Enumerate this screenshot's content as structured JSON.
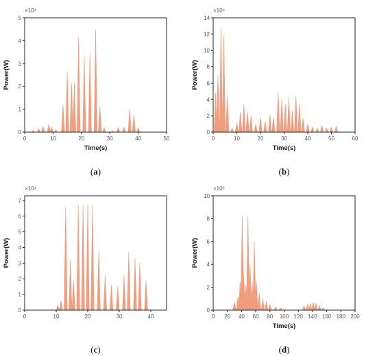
{
  "accent_color": "#EF9A7A",
  "chart_data": [
    {
      "id": "a",
      "type": "area",
      "panel_label": "a",
      "title": "",
      "xlabel": "Time(s)",
      "ylabel": "Power(W)",
      "multiplier": "×10⁴",
      "xlim": [
        0,
        50
      ],
      "ylim": [
        0,
        5
      ],
      "xticks": [
        "0",
        "10",
        "20",
        "30",
        "40",
        "50"
      ],
      "yticks": [
        "0",
        "1",
        "2",
        "3",
        "4",
        "5"
      ],
      "peaks": [
        [
          3,
          0.08
        ],
        [
          5,
          0.15
        ],
        [
          6.5,
          0.25
        ],
        [
          8.5,
          0.35
        ],
        [
          9.5,
          0.22
        ],
        [
          11,
          0.1
        ],
        [
          13.5,
          1.2
        ],
        [
          15,
          2.65
        ],
        [
          16.5,
          2.15
        ],
        [
          17.5,
          2.15
        ],
        [
          19,
          4.15
        ],
        [
          21,
          3.3
        ],
        [
          23,
          3.45
        ],
        [
          25,
          4.5
        ],
        [
          26.5,
          1.15
        ],
        [
          28,
          0.2
        ],
        [
          31,
          0.05
        ],
        [
          33,
          0.2
        ],
        [
          35,
          0.22
        ],
        [
          37,
          1.0
        ],
        [
          38.5,
          0.75
        ],
        [
          40,
          0.2
        ]
      ]
    },
    {
      "id": "b",
      "type": "area",
      "panel_label": "b",
      "title": "",
      "xlabel": "Time(s)",
      "ylabel": "Power(W)",
      "multiplier": "×10⁴",
      "xlim": [
        0,
        60
      ],
      "ylim": [
        0,
        14
      ],
      "xticks": [
        "0",
        "10",
        "20",
        "30",
        "40",
        "50",
        "60"
      ],
      "yticks": [
        "0",
        "2",
        "4",
        "6",
        "8",
        "10",
        "12",
        "14"
      ],
      "peaks": [
        [
          1,
          4.8
        ],
        [
          2,
          7.1
        ],
        [
          3.3,
          12.7
        ],
        [
          4.5,
          11.8
        ],
        [
          6,
          4.5
        ],
        [
          8,
          0.5
        ],
        [
          10,
          1.2
        ],
        [
          11.5,
          2.4
        ],
        [
          13,
          3.4
        ],
        [
          14.5,
          2.5
        ],
        [
          16,
          2.0
        ],
        [
          18,
          1.0
        ],
        [
          20,
          1.8
        ],
        [
          22,
          1.3
        ],
        [
          24,
          2.2
        ],
        [
          25.5,
          1.8
        ],
        [
          27.5,
          4.9
        ],
        [
          29,
          4.0
        ],
        [
          30.5,
          3.5
        ],
        [
          32,
          4.3
        ],
        [
          33.5,
          2.6
        ],
        [
          35,
          4.5
        ],
        [
          36.5,
          3.5
        ],
        [
          38,
          1.7
        ],
        [
          40,
          1.0
        ],
        [
          42,
          0.6
        ],
        [
          44,
          0.5
        ],
        [
          46,
          0.8
        ],
        [
          48,
          0.5
        ],
        [
          50,
          0.6
        ],
        [
          52,
          0.7
        ]
      ]
    },
    {
      "id": "c",
      "type": "area",
      "panel_label": "c",
      "title": "",
      "xlabel": "",
      "ylabel": "Power(W)",
      "multiplier": "×10⁴",
      "xlim": [
        0,
        45
      ],
      "ylim": [
        0,
        7.3
      ],
      "xticks": [
        "0",
        "10",
        "20",
        "30",
        "40"
      ],
      "yticks": [
        "0",
        "1",
        "2",
        "3",
        "4",
        "5",
        "6",
        "7"
      ],
      "peaks": [
        [
          10.5,
          0.3
        ],
        [
          11.5,
          0.6
        ],
        [
          13,
          6.6
        ],
        [
          14.5,
          3.2
        ],
        [
          15.5,
          1.9
        ],
        [
          17,
          6.7
        ],
        [
          18.5,
          6.75
        ],
        [
          20,
          6.75
        ],
        [
          21.5,
          6.75
        ],
        [
          23.5,
          3.8
        ],
        [
          25.5,
          2.2
        ],
        [
          27.5,
          1.6
        ],
        [
          29.5,
          1.5
        ],
        [
          31.5,
          2.2
        ],
        [
          33,
          3.7
        ],
        [
          35,
          3.3
        ],
        [
          36.5,
          3.0
        ],
        [
          38.5,
          1.9
        ]
      ]
    },
    {
      "id": "d",
      "type": "area",
      "panel_label": "d",
      "title": "",
      "xlabel": "Time(s)",
      "ylabel": "Power(W)",
      "multiplier": "×10⁵",
      "xlim": [
        0,
        200
      ],
      "ylim": [
        0,
        10
      ],
      "xticks": [
        "0",
        "20",
        "40",
        "60",
        "80",
        "100",
        "120",
        "140",
        "160",
        "180",
        "200"
      ],
      "yticks": [
        "0",
        "2",
        "4",
        "6",
        "8",
        "10"
      ],
      "peaks": [
        [
          30,
          0.7
        ],
        [
          35,
          1.2
        ],
        [
          38,
          2.5
        ],
        [
          41,
          8.2
        ],
        [
          43,
          3.0
        ],
        [
          46,
          2.2
        ],
        [
          49,
          8.3
        ],
        [
          52,
          4.0
        ],
        [
          55,
          2.5
        ],
        [
          58,
          6.0
        ],
        [
          61,
          2.5
        ],
        [
          65,
          1.5
        ],
        [
          70,
          1.0
        ],
        [
          75,
          0.8
        ],
        [
          80,
          0.5
        ],
        [
          88,
          0.3
        ],
        [
          95,
          0.2
        ],
        [
          128,
          0.4
        ],
        [
          133,
          0.5
        ],
        [
          137,
          0.6
        ],
        [
          141,
          0.7
        ],
        [
          145,
          0.6
        ],
        [
          150,
          0.4
        ],
        [
          155,
          0.2
        ]
      ]
    }
  ]
}
